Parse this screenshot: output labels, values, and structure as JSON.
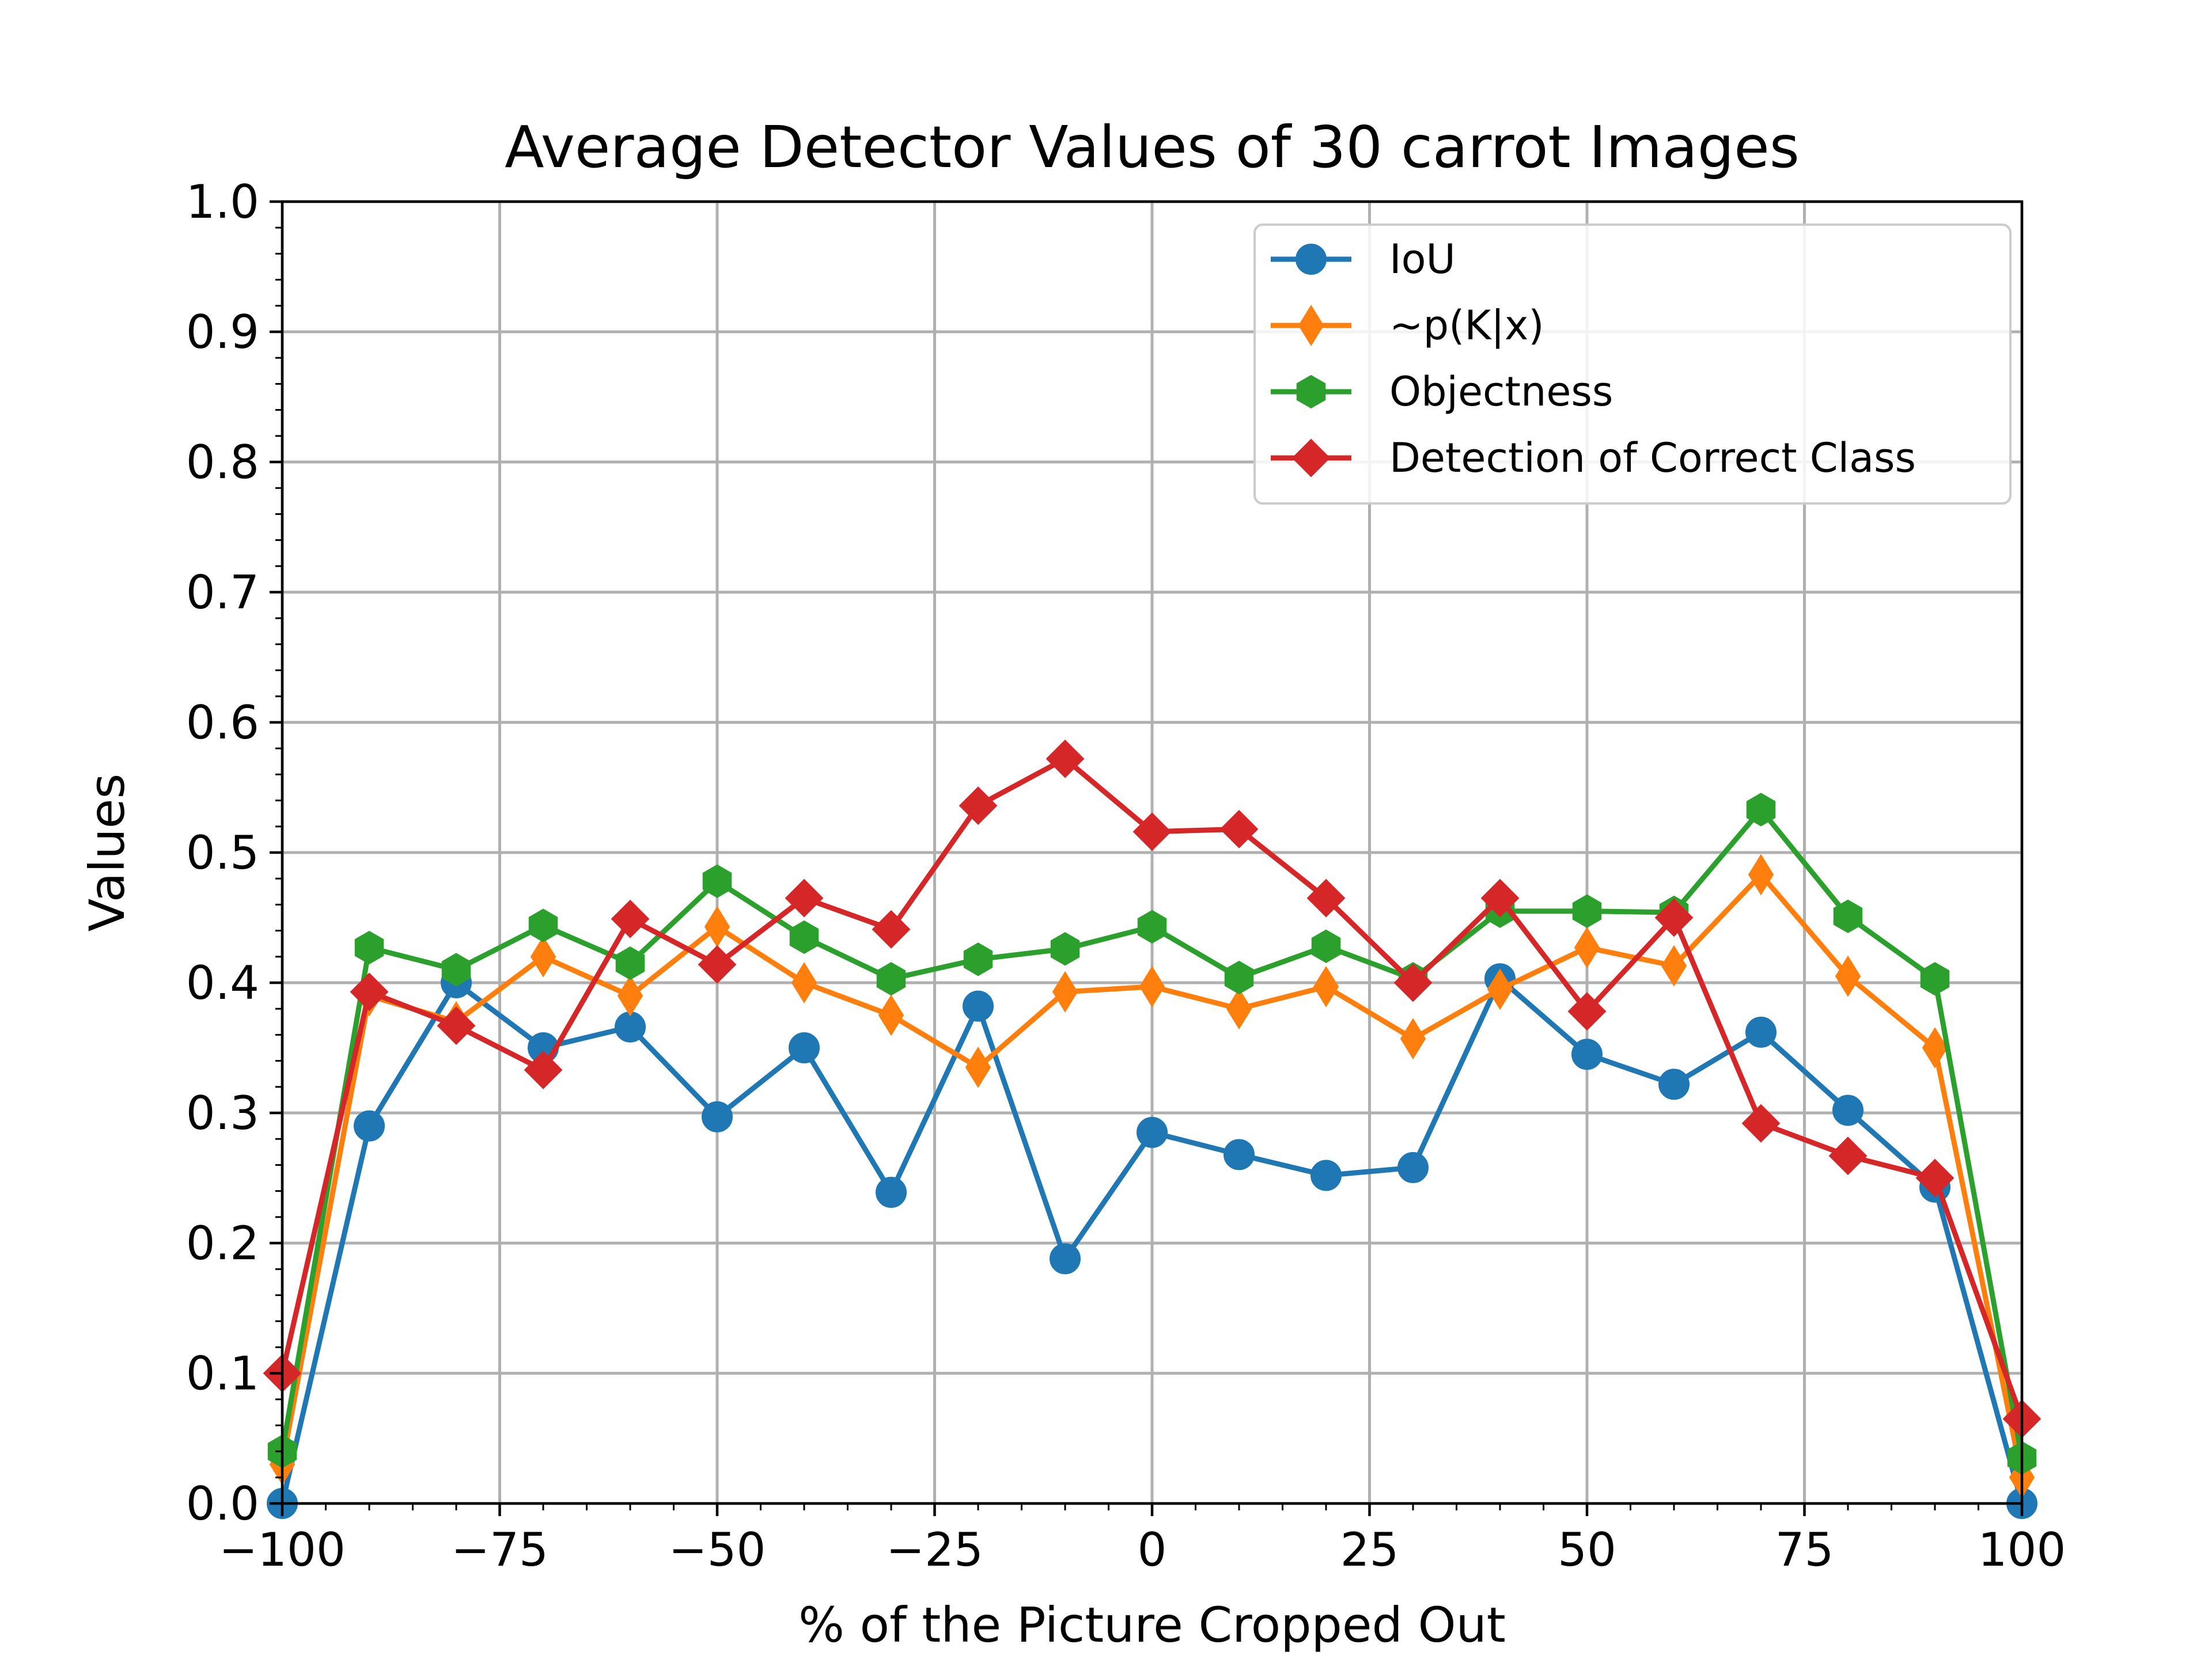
{
  "chart_data": {
    "type": "line",
    "title": "Average Detector Values of 30 carrot Images",
    "xlabel": "% of the Picture Cropped Out",
    "ylabel": "Values",
    "xlim": [
      -100,
      100
    ],
    "ylim": [
      0,
      1.0
    ],
    "xticks": [
      -100,
      -75,
      -50,
      -25,
      0,
      25,
      50,
      75,
      100
    ],
    "xtick_labels": [
      "−100",
      "−75",
      "−50",
      "−25",
      "0",
      "25",
      "50",
      "75",
      "100"
    ],
    "yticks": [
      0,
      0.1,
      0.2,
      0.3,
      0.4,
      0.5,
      0.6,
      0.7,
      0.8,
      0.9,
      1.0
    ],
    "ytick_labels": [
      "0.0",
      "0.1",
      "0.2",
      "0.3",
      "0.4",
      "0.5",
      "0.6",
      "0.7",
      "0.8",
      "0.9",
      "1.0"
    ],
    "grid": true,
    "legend_position": "top-right",
    "x": [
      -100,
      -90,
      -80,
      -70,
      -60,
      -50,
      -40,
      -30,
      -20,
      -10,
      0,
      10,
      20,
      30,
      40,
      50,
      60,
      70,
      80,
      90,
      100
    ],
    "series": [
      {
        "name": "IoU",
        "color": "#1f77b4",
        "marker": "circle",
        "values": [
          0.0,
          0.29,
          0.4,
          0.35,
          0.366,
          0.297,
          0.35,
          0.239,
          0.382,
          0.188,
          0.285,
          0.268,
          0.252,
          0.258,
          0.403,
          0.345,
          0.322,
          0.362,
          0.302,
          0.243,
          0.0
        ]
      },
      {
        "name": "~p(K|x)",
        "color": "#ff7f0e",
        "marker": "thin-diamond",
        "values": [
          0.03,
          0.39,
          0.37,
          0.42,
          0.39,
          0.443,
          0.4,
          0.375,
          0.335,
          0.393,
          0.397,
          0.38,
          0.397,
          0.357,
          0.395,
          0.427,
          0.413,
          0.483,
          0.405,
          0.35,
          0.02
        ]
      },
      {
        "name": "Objectness",
        "color": "#2ca02c",
        "marker": "hexagon",
        "values": [
          0.04,
          0.427,
          0.41,
          0.444,
          0.415,
          0.478,
          0.435,
          0.403,
          0.418,
          0.426,
          0.443,
          0.404,
          0.428,
          0.403,
          0.455,
          0.455,
          0.454,
          0.533,
          0.451,
          0.403,
          0.035
        ]
      },
      {
        "name": "Detection of Correct Class",
        "color": "#d62728",
        "marker": "diamond",
        "values": [
          0.1,
          0.393,
          0.367,
          0.333,
          0.449,
          0.414,
          0.465,
          0.441,
          0.536,
          0.572,
          0.516,
          0.518,
          0.465,
          0.4,
          0.465,
          0.378,
          0.45,
          0.292,
          0.267,
          0.25,
          0.065
        ]
      }
    ]
  }
}
